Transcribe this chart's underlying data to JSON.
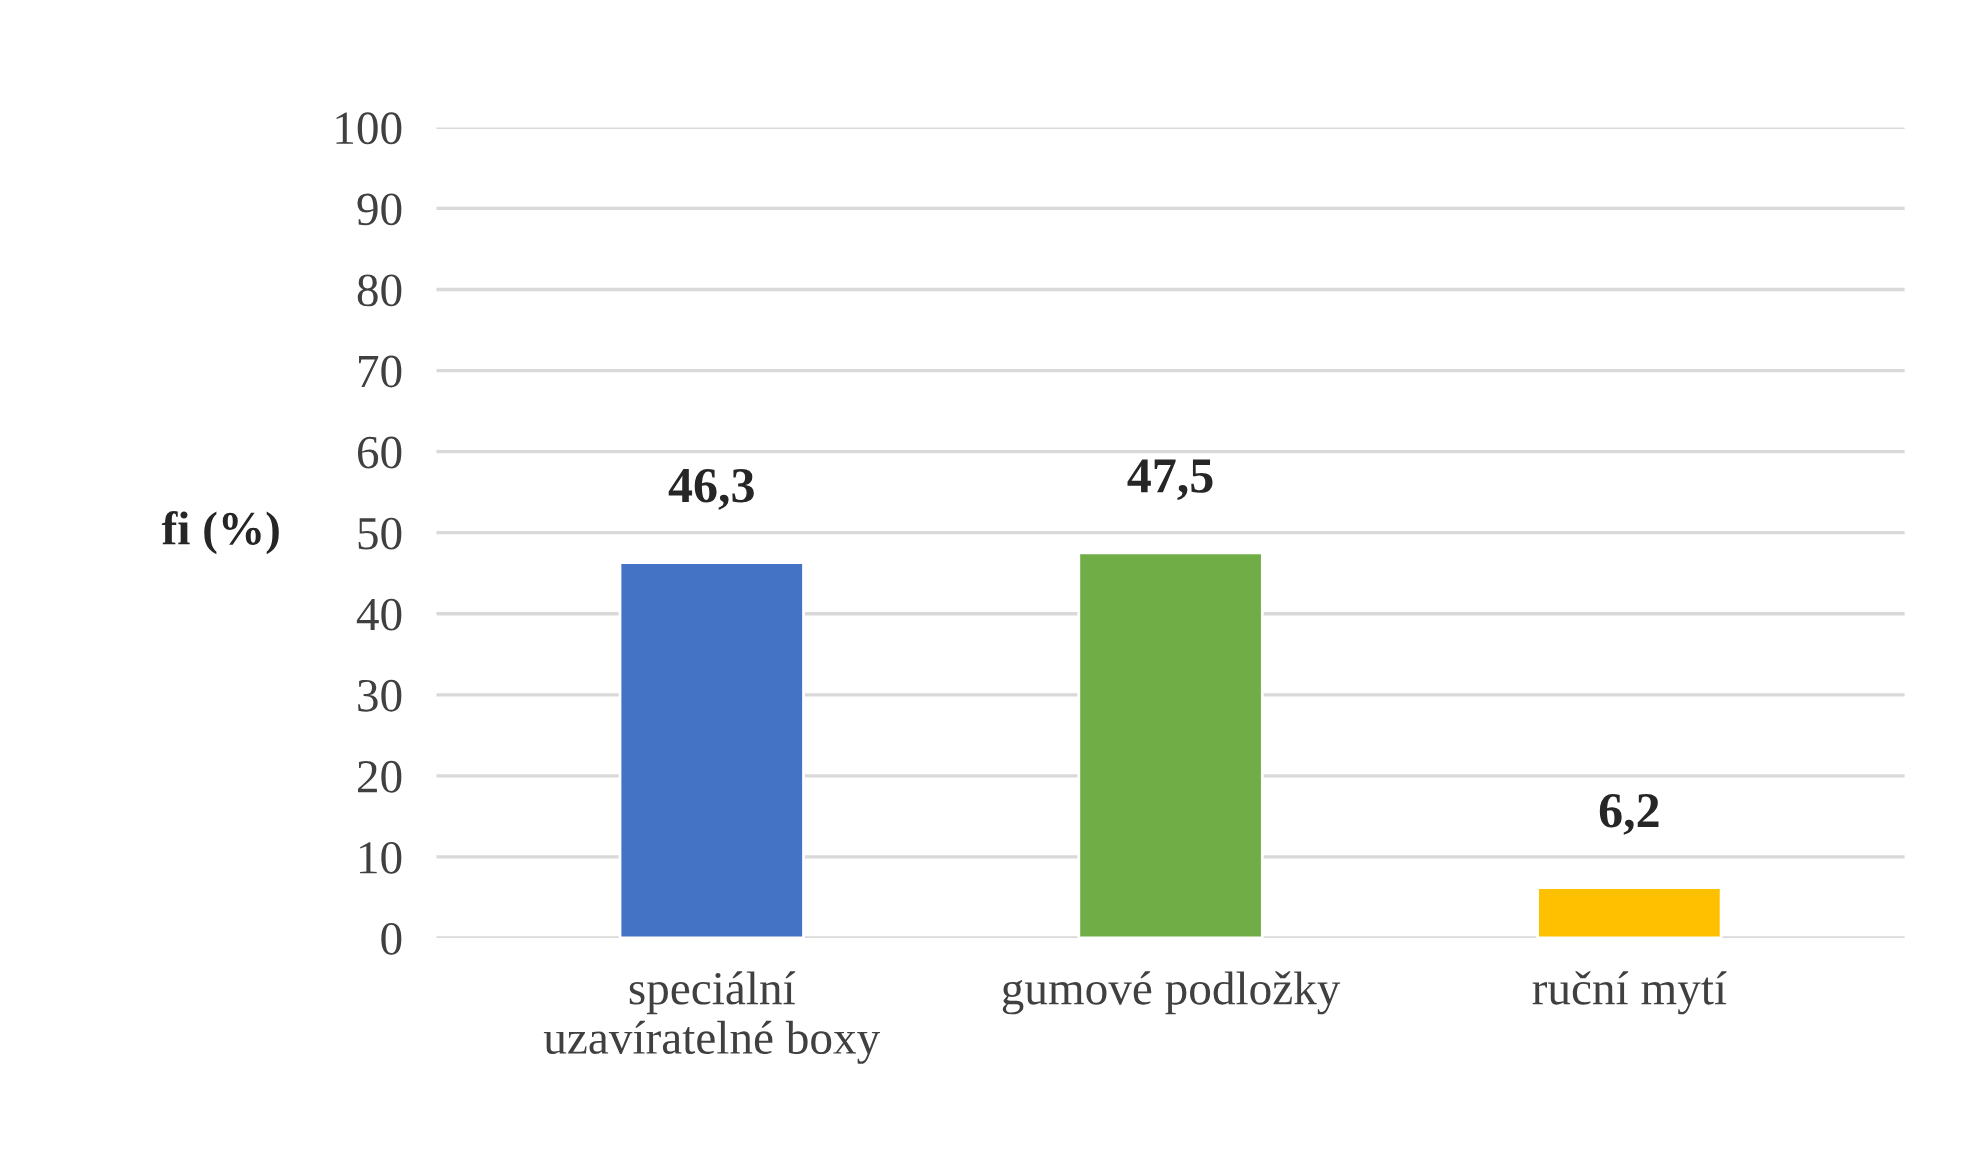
{
  "chart_data": {
    "type": "bar",
    "ylabel": "fi (%)",
    "categories": [
      "speciální\nuzavíratelné boxy",
      "gumové podložky",
      "ruční mytí"
    ],
    "values": [
      46.3,
      47.5,
      6.2
    ],
    "colors": [
      "#4472c4",
      "#70ad47",
      "#ffc000"
    ],
    "value_labels": [
      "46,3",
      "47,5",
      "6,2"
    ],
    "ylim": [
      0,
      100
    ],
    "yticks": [
      0,
      10,
      20,
      30,
      40,
      50,
      60,
      70,
      80,
      90,
      100
    ],
    "grid": "y",
    "legend": false
  }
}
